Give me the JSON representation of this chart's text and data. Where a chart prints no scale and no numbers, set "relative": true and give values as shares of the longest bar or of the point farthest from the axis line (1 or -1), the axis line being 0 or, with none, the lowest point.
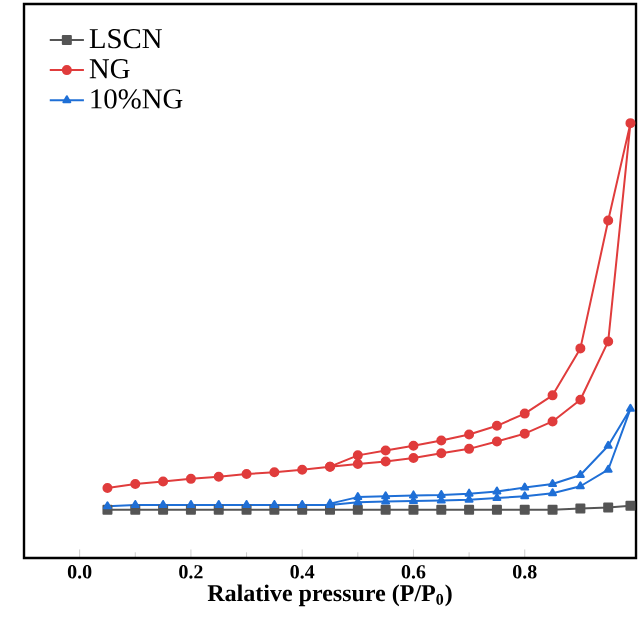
{
  "chart_data": {
    "type": "line",
    "xlabel": "Ralative pressure (P/P$_{0}$)",
    "relative": true,
    "xlim": [
      -0.1,
      1.0
    ],
    "xticks": [
      {
        "value": 0.0,
        "label": "0.0"
      },
      {
        "value": 0.2,
        "label": "0.2"
      },
      {
        "value": 0.4,
        "label": "0.4"
      },
      {
        "value": 0.6,
        "label": "0.6"
      },
      {
        "value": 0.8,
        "label": "0.8"
      }
    ],
    "legend": "top left",
    "grid": false,
    "series": [
      {
        "name": "LSCN",
        "color": "#555555",
        "marker": "square",
        "x": [
          0.05,
          0.1,
          0.15,
          0.2,
          0.25,
          0.3,
          0.35,
          0.4,
          0.45,
          0.5,
          0.55,
          0.6,
          0.65,
          0.7,
          0.75,
          0.8,
          0.85,
          0.9,
          0.95,
          0.99
        ],
        "values": [
          0.111,
          0.111,
          0.111,
          0.111,
          0.111,
          0.111,
          0.111,
          0.111,
          0.111,
          0.111,
          0.111,
          0.111,
          0.111,
          0.111,
          0.111,
          0.111,
          0.111,
          0.114,
          0.116,
          0.12
        ]
      },
      {
        "name": "NG",
        "color": "#e03c3c",
        "marker": "circle",
        "x": [
          0.05,
          0.1,
          0.15,
          0.2,
          0.25,
          0.3,
          0.35,
          0.4,
          0.45,
          0.5,
          0.55,
          0.6,
          0.65,
          0.7,
          0.75,
          0.8,
          0.85,
          0.9,
          0.95,
          0.99,
          0.95,
          0.9,
          0.85,
          0.8,
          0.75,
          0.7,
          0.65,
          0.6,
          0.55,
          0.5,
          0.45
        ],
        "values": [
          0.161,
          0.17,
          0.176,
          0.182,
          0.187,
          0.193,
          0.197,
          0.203,
          0.21,
          0.216,
          0.222,
          0.23,
          0.241,
          0.251,
          0.268,
          0.286,
          0.314,
          0.364,
          0.498,
          1.0,
          0.776,
          0.482,
          0.374,
          0.332,
          0.304,
          0.284,
          0.27,
          0.258,
          0.247,
          0.236,
          0.21
        ]
      },
      {
        "name": "10%NG",
        "color": "#1f6fd6",
        "marker": "triangle",
        "x": [
          0.05,
          0.1,
          0.15,
          0.2,
          0.25,
          0.3,
          0.35,
          0.4,
          0.45,
          0.5,
          0.55,
          0.6,
          0.65,
          0.7,
          0.75,
          0.8,
          0.85,
          0.9,
          0.95,
          0.99,
          0.95,
          0.9,
          0.85,
          0.8,
          0.75,
          0.7,
          0.65,
          0.6,
          0.55,
          0.5,
          0.45
        ],
        "values": [
          0.119,
          0.122,
          0.122,
          0.122,
          0.122,
          0.122,
          0.122,
          0.122,
          0.122,
          0.128,
          0.13,
          0.131,
          0.132,
          0.134,
          0.138,
          0.142,
          0.149,
          0.165,
          0.203,
          0.343,
          0.258,
          0.191,
          0.17,
          0.162,
          0.153,
          0.148,
          0.145,
          0.144,
          0.142,
          0.14,
          0.125
        ]
      }
    ]
  }
}
